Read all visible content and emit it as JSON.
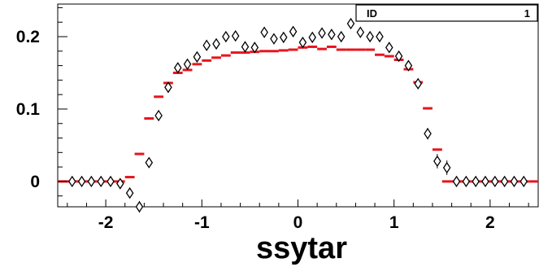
{
  "chart_data": {
    "type": "scatter",
    "title": "",
    "xlabel": "ssytar",
    "ylabel": "",
    "xlim": [
      -2.5,
      2.5
    ],
    "ylim": [
      -0.035,
      0.245
    ],
    "x_ticks": [
      {
        "value": -2,
        "label": "-2"
      },
      {
        "value": -1,
        "label": "-1"
      },
      {
        "value": 0,
        "label": "0"
      },
      {
        "value": 1,
        "label": "1"
      },
      {
        "value": 2,
        "label": "2"
      }
    ],
    "y_ticks": [
      {
        "value": 0,
        "label": "0"
      },
      {
        "value": 0.1,
        "label": "0.1"
      },
      {
        "value": 0.2,
        "label": "0.2"
      }
    ],
    "grid": false,
    "legend": "none",
    "stats_box": {
      "label": "ID",
      "value": "1"
    },
    "colors": {
      "histogram": "#e8141e",
      "markers": "#000000",
      "axes": "#000000"
    },
    "series": [
      {
        "kind": "histogram",
        "bin_width": 0.1,
        "x": [
          -2.45,
          -2.35,
          -2.25,
          -2.15,
          -2.05,
          -1.95,
          -1.85,
          -1.75,
          -1.65,
          -1.55,
          -1.45,
          -1.35,
          -1.25,
          -1.15,
          -1.05,
          -0.95,
          -0.85,
          -0.75,
          -0.65,
          -0.55,
          -0.45,
          -0.35,
          -0.25,
          -0.15,
          -0.05,
          0.05,
          0.15,
          0.25,
          0.35,
          0.45,
          0.55,
          0.65,
          0.75,
          0.85,
          0.95,
          1.05,
          1.15,
          1.25,
          1.35,
          1.45,
          1.55,
          1.65,
          1.75,
          1.85,
          1.95,
          2.05,
          2.15,
          2.25,
          2.35,
          2.45
        ],
        "y": [
          0,
          0,
          0,
          0,
          0,
          0,
          0,
          0.006,
          0.038,
          0.087,
          0.117,
          0.136,
          0.15,
          0.154,
          0.162,
          0.167,
          0.171,
          0.174,
          0.178,
          0.178,
          0.179,
          0.18,
          0.18,
          0.181,
          0.182,
          0.185,
          0.186,
          0.183,
          0.186,
          0.182,
          0.182,
          0.182,
          0.182,
          0.175,
          0.173,
          0.168,
          0.155,
          0.137,
          0.101,
          0.044,
          0,
          0,
          0,
          0,
          0,
          0,
          0,
          0,
          0,
          0
        ]
      },
      {
        "kind": "markers",
        "marker": "open-diamond",
        "x": [
          -2.35,
          -2.25,
          -2.15,
          -2.05,
          -1.95,
          -1.85,
          -1.75,
          -1.65,
          -1.55,
          -1.45,
          -1.35,
          -1.25,
          -1.15,
          -1.05,
          -0.95,
          -0.85,
          -0.75,
          -0.65,
          -0.55,
          -0.45,
          -0.35,
          -0.25,
          -0.15,
          -0.05,
          0.05,
          0.15,
          0.25,
          0.35,
          0.45,
          0.55,
          0.65,
          0.75,
          0.85,
          0.95,
          1.05,
          1.15,
          1.25,
          1.35,
          1.45,
          1.55,
          1.65,
          1.75,
          1.85,
          1.95,
          2.05,
          2.15,
          2.25,
          2.35
        ],
        "y": [
          0,
          0,
          0,
          0,
          0,
          -0.003,
          -0.016,
          -0.035,
          0.026,
          0.091,
          0.13,
          0.157,
          0.162,
          0.172,
          0.188,
          0.19,
          0.2,
          0.201,
          0.186,
          0.185,
          0.206,
          0.197,
          0.199,
          0.207,
          0.192,
          0.199,
          0.205,
          0.203,
          0.2,
          0.218,
          0.206,
          0.2,
          0.2,
          0.185,
          0.173,
          0.16,
          0.135,
          0.066,
          0.028,
          0.019,
          0,
          0,
          0,
          0,
          0,
          0,
          0,
          0
        ],
        "yerr": [
          0,
          0,
          0,
          0,
          0,
          0.003,
          0.006,
          0.008,
          0.005,
          0.006,
          0.006,
          0.006,
          0.006,
          0.006,
          0.006,
          0.006,
          0.006,
          0.006,
          0.006,
          0.006,
          0.006,
          0.006,
          0.006,
          0.006,
          0.006,
          0.006,
          0.006,
          0.006,
          0.006,
          0.006,
          0.006,
          0.006,
          0.006,
          0.006,
          0.006,
          0.006,
          0.006,
          0.008,
          0.01,
          0.01,
          0,
          0,
          0,
          0,
          0,
          0,
          0,
          0
        ]
      }
    ]
  }
}
